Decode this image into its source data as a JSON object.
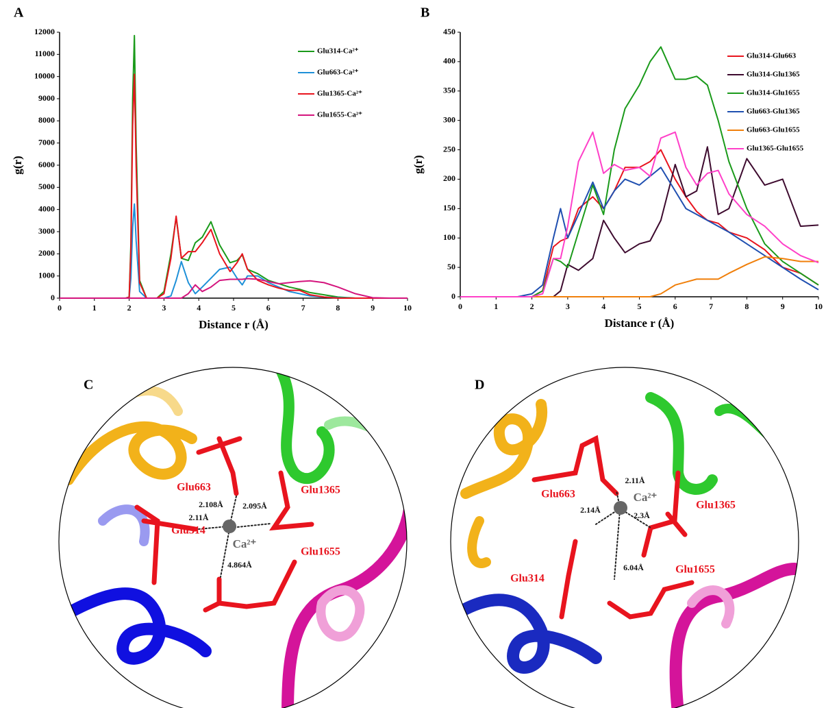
{
  "chart_data": [
    {
      "type": "line",
      "label": "A",
      "ylabel": "g(r)",
      "xlabel": "Distance r (Å)",
      "xlim": [
        0,
        10
      ],
      "xticks": [
        0,
        1,
        2,
        3,
        4,
        5,
        6,
        7,
        8,
        9,
        10
      ],
      "ylim": [
        0,
        12000
      ],
      "yticks": [
        0,
        1000,
        2000,
        3000,
        4000,
        5000,
        6000,
        7000,
        8000,
        9000,
        10000,
        11000,
        12000
      ],
      "x": [
        0,
        1,
        1.9,
        2.0,
        2.05,
        2.1,
        2.15,
        2.2,
        2.3,
        2.5,
        2.8,
        3.0,
        3.2,
        3.35,
        3.5,
        3.7,
        3.9,
        4.1,
        4.35,
        4.6,
        4.9,
        5.1,
        5.25,
        5.4,
        5.7,
        6.0,
        6.3,
        6.6,
        6.9,
        7.2,
        7.6,
        8.0,
        8.5,
        9.0,
        9.5,
        10
      ],
      "series": [
        {
          "name": "Glu314-Ca²⁺",
          "color": "#1a9a1a",
          "values": [
            0,
            0,
            0,
            50,
            2500,
            9000,
            11850,
            7000,
            800,
            0,
            0,
            300,
            2000,
            3650,
            1800,
            1700,
            2500,
            2750,
            3450,
            2400,
            1600,
            1700,
            1950,
            1300,
            1100,
            800,
            650,
            500,
            400,
            250,
            150,
            50,
            0,
            0,
            0,
            0
          ]
        },
        {
          "name": "Glu663-Ca²⁺",
          "color": "#1e90d8",
          "values": [
            0,
            0,
            0,
            20,
            900,
            3200,
            4250,
            2600,
            300,
            0,
            0,
            0,
            100,
            800,
            1650,
            700,
            200,
            500,
            900,
            1300,
            1400,
            900,
            600,
            1000,
            1000,
            700,
            500,
            300,
            200,
            100,
            50,
            20,
            0,
            0,
            0,
            0
          ]
        },
        {
          "name": "Glu1365-Ca²⁺",
          "color": "#e8141e",
          "values": [
            0,
            0,
            0,
            40,
            2200,
            7800,
            10100,
            6000,
            700,
            0,
            0,
            200,
            1800,
            3700,
            1800,
            2100,
            2100,
            2500,
            3100,
            2000,
            1200,
            1600,
            2000,
            1300,
            800,
            600,
            450,
            350,
            350,
            150,
            50,
            0,
            0,
            0,
            0,
            0
          ]
        },
        {
          "name": "Glu1655-Ca²⁺",
          "color": "#d4147d",
          "values": [
            0,
            0,
            0,
            0,
            0,
            0,
            0,
            0,
            0,
            0,
            0,
            0,
            0,
            0,
            0,
            200,
            600,
            300,
            500,
            800,
            850,
            850,
            850,
            880,
            850,
            750,
            650,
            700,
            750,
            780,
            700,
            500,
            200,
            20,
            0,
            0
          ]
        }
      ]
    },
    {
      "type": "line",
      "label": "B",
      "ylabel": "g(r)",
      "xlabel": "Distance r (Å)",
      "xlim": [
        0,
        10
      ],
      "xticks": [
        0,
        1,
        2,
        3,
        4,
        5,
        6,
        7,
        8,
        9,
        10
      ],
      "ylim": [
        0,
        450
      ],
      "yticks": [
        0,
        50,
        100,
        150,
        200,
        250,
        300,
        350,
        400,
        450
      ],
      "x": [
        0,
        1.6,
        2.0,
        2.3,
        2.6,
        2.8,
        3.0,
        3.3,
        3.7,
        4.0,
        4.3,
        4.6,
        5.0,
        5.3,
        5.6,
        6.0,
        6.3,
        6.6,
        6.9,
        7.2,
        7.5,
        8.0,
        8.5,
        9.0,
        9.5,
        10
      ],
      "series": [
        {
          "name": "Glu314-Glu663",
          "color": "#e8141e",
          "values": [
            0,
            0,
            0,
            10,
            85,
            95,
            100,
            150,
            170,
            150,
            180,
            220,
            220,
            230,
            250,
            200,
            170,
            145,
            130,
            125,
            110,
            100,
            80,
            50,
            40,
            20
          ]
        },
        {
          "name": "Glu314-Glu1365",
          "color": "#3d0a2e",
          "values": [
            0,
            0,
            0,
            0,
            0,
            10,
            55,
            45,
            65,
            130,
            100,
            75,
            90,
            95,
            130,
            225,
            170,
            180,
            255,
            140,
            150,
            235,
            190,
            200,
            120,
            122
          ]
        },
        {
          "name": "Glu314-Glu1655",
          "color": "#1a9a1a",
          "values": [
            0,
            0,
            0,
            10,
            65,
            60,
            50,
            110,
            190,
            140,
            250,
            320,
            360,
            400,
            425,
            370,
            370,
            375,
            360,
            300,
            230,
            150,
            90,
            60,
            40,
            20
          ]
        },
        {
          "name": "Glu663-Glu1365",
          "color": "#1f4fb0",
          "values": [
            0,
            0,
            5,
            20,
            100,
            150,
            100,
            140,
            195,
            150,
            180,
            200,
            190,
            205,
            220,
            180,
            150,
            140,
            130,
            120,
            110,
            90,
            70,
            50,
            30,
            12
          ]
        },
        {
          "name": "Glu663-Glu1655",
          "color": "#f07f0a",
          "values": [
            0,
            0,
            0,
            0,
            0,
            0,
            0,
            0,
            0,
            0,
            0,
            0,
            0,
            0,
            5,
            20,
            25,
            30,
            30,
            30,
            40,
            55,
            68,
            65,
            60,
            60
          ]
        },
        {
          "name": "Glu1365-Glu1655",
          "color": "#ff3fc8",
          "values": [
            0,
            0,
            0,
            5,
            65,
            65,
            120,
            230,
            280,
            210,
            225,
            215,
            220,
            205,
            270,
            280,
            220,
            190,
            210,
            215,
            175,
            140,
            120,
            90,
            70,
            58
          ]
        }
      ]
    }
  ],
  "panels": [
    {
      "label": "C",
      "ion": "Ca²⁺",
      "residues": [
        "Glu663",
        "Glu1365",
        "Glu314",
        "Glu1655"
      ],
      "distances": [
        "2.108Å",
        "2.095Å",
        "2.11Å",
        "4.864Å"
      ]
    },
    {
      "label": "D",
      "ion": "Ca²⁺",
      "residues": [
        "Glu663",
        "Glu1365",
        "Glu314",
        "Glu1655"
      ],
      "distances": [
        "2.11Å",
        "2.14Å",
        "2.3Å",
        "6.04Å"
      ]
    }
  ]
}
